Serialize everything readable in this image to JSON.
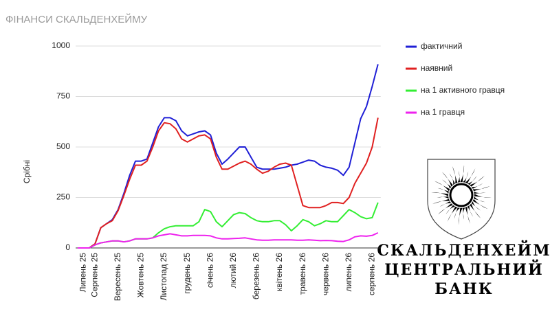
{
  "chart_data": {
    "type": "line",
    "title": "ФІНАНСИ СКАЛЬДЕНХЕЙМУ",
    "y_label": "Срібні",
    "categories": [
      null,
      "Липень 25",
      null,
      "Серпень 25",
      null,
      null,
      null,
      "Вересень 25",
      null,
      null,
      null,
      "Жовтень 25",
      null,
      null,
      null,
      "Листопад 25",
      null,
      null,
      null,
      "грудень 25",
      null,
      null,
      null,
      "січень 26",
      null,
      null,
      null,
      "лютий 26",
      null,
      null,
      null,
      "березень 26",
      null,
      null,
      null,
      "квітень 26",
      null,
      null,
      null,
      "травень 26",
      null,
      null,
      null,
      "червень 26",
      null,
      null,
      null,
      "липень 26",
      null,
      null,
      null,
      "серпень 26",
      null
    ],
    "series": [
      {
        "name": "фактичний",
        "color": "#1f1fd6",
        "values": [
          0,
          0,
          0,
          20,
          100,
          120,
          140,
          190,
          270,
          360,
          430,
          430,
          440,
          520,
          600,
          645,
          645,
          630,
          580,
          555,
          565,
          575,
          580,
          560,
          470,
          415,
          440,
          470,
          500,
          500,
          450,
          400,
          390,
          390,
          390,
          395,
          400,
          410,
          415,
          425,
          435,
          430,
          410,
          400,
          395,
          385,
          360,
          400,
          520,
          640,
          700,
          800,
          910
        ]
      },
      {
        "name": "наявний",
        "color": "#e02020",
        "values": [
          0,
          0,
          0,
          20,
          100,
          120,
          135,
          185,
          260,
          340,
          410,
          410,
          430,
          500,
          580,
          620,
          615,
          590,
          540,
          525,
          540,
          555,
          560,
          540,
          450,
          390,
          390,
          405,
          420,
          430,
          415,
          390,
          370,
          380,
          400,
          415,
          420,
          410,
          310,
          210,
          200,
          200,
          200,
          210,
          225,
          225,
          220,
          250,
          320,
          370,
          420,
          500,
          645
        ]
      },
      {
        "name": "на 1 активного гравця",
        "color": "#33ee33",
        "values": [
          0,
          0,
          0,
          15,
          25,
          30,
          35,
          35,
          30,
          35,
          45,
          45,
          45,
          50,
          75,
          95,
          105,
          110,
          110,
          110,
          110,
          130,
          190,
          180,
          130,
          105,
          135,
          165,
          175,
          170,
          150,
          135,
          130,
          130,
          135,
          135,
          115,
          85,
          110,
          140,
          130,
          110,
          120,
          135,
          130,
          130,
          160,
          190,
          175,
          155,
          145,
          150,
          225
        ]
      },
      {
        "name": "на 1 гравця",
        "color": "#ee22ee",
        "values": [
          0,
          0,
          0,
          15,
          25,
          30,
          35,
          35,
          30,
          35,
          45,
          45,
          45,
          50,
          60,
          65,
          70,
          65,
          60,
          60,
          62,
          62,
          62,
          60,
          50,
          45,
          45,
          47,
          48,
          50,
          45,
          40,
          38,
          38,
          40,
          40,
          40,
          40,
          38,
          38,
          40,
          38,
          36,
          37,
          36,
          33,
          32,
          40,
          55,
          60,
          58,
          62,
          75
        ]
      }
    ],
    "ylim": [
      0,
      1000
    ],
    "yticks": [
      0,
      250,
      500,
      750,
      1000
    ],
    "grid": true,
    "legend": "right"
  },
  "logo": {
    "lines": [
      "СКАЛЬДЕНХЕЙМ",
      "ЦЕНТРАЛЬНИЙ",
      "БАНК"
    ]
  }
}
